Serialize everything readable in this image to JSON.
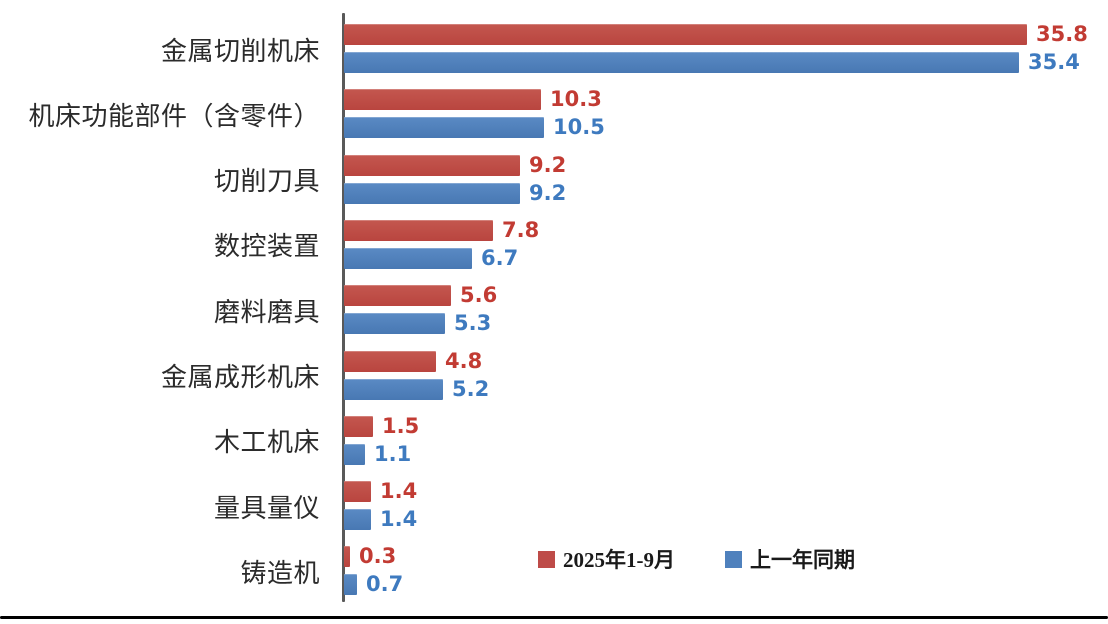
{
  "chart_data": {
    "type": "bar",
    "orientation": "horizontal",
    "title": "",
    "xlabel": "",
    "ylabel": "",
    "xlim": [
      0,
      40
    ],
    "grid": false,
    "legend_position": "inside-bottom-center",
    "categories": [
      "金属切削机床",
      "机床功能部件（含零件）",
      "切削刀具",
      "数控装置",
      "磨料磨具",
      "金属成形机床",
      "木工机床",
      "量具量仪",
      "铸造机"
    ],
    "series": [
      {
        "name": "2025年1-9月",
        "color": "#be4b48",
        "label_color": "#c23b33",
        "values": [
          35.8,
          10.3,
          9.2,
          7.8,
          5.6,
          4.8,
          1.5,
          1.4,
          0.3
        ]
      },
      {
        "name": "上一年同期",
        "color": "#4f81bd",
        "label_color": "#3e7abf",
        "values": [
          35.4,
          10.5,
          9.2,
          6.7,
          5.3,
          5.2,
          1.1,
          1.4,
          0.7
        ]
      }
    ]
  },
  "axis": {
    "color": "#595959"
  },
  "frame": {
    "bottom_border_color": "#000000"
  }
}
